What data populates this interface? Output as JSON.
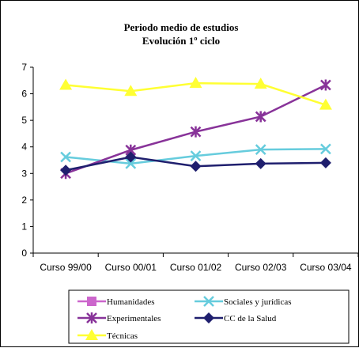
{
  "chart_data": {
    "type": "line",
    "title": "Periodo medio de estudios",
    "subtitle": "Evolución 1º ciclo",
    "xlabel": "",
    "ylabel": "",
    "categories": [
      "Curso 99/00",
      "Curso 00/01",
      "Curso 01/02",
      "Curso 02/03",
      "Curso 03/04"
    ],
    "ylim": [
      0,
      7
    ],
    "yticks": [
      "0",
      "1",
      "2",
      "3",
      "4",
      "5",
      "6",
      "7"
    ],
    "grid": false,
    "legend_position": "bottom",
    "series": [
      {
        "name": "Humanidades",
        "color": "#CC66CC",
        "marker": "square",
        "values": [
          null,
          null,
          null,
          null,
          null
        ]
      },
      {
        "name": "Sociales y jurídicas",
        "color": "#66CCDD",
        "marker": "x",
        "values": [
          3.62,
          3.37,
          3.66,
          3.9,
          3.92
        ]
      },
      {
        "name": "Experimentales",
        "color": "#883399",
        "marker": "asterisk",
        "values": [
          3.0,
          3.88,
          4.57,
          5.14,
          6.33
        ]
      },
      {
        "name": "CC de la Salud",
        "color": "#1F1F6E",
        "marker": "diamond",
        "values": [
          3.12,
          3.62,
          3.27,
          3.37,
          3.4
        ]
      },
      {
        "name": "Técnicas",
        "color": "#FFFF33",
        "marker": "triangle",
        "values": [
          6.33,
          6.1,
          6.4,
          6.37,
          5.58
        ]
      }
    ]
  }
}
